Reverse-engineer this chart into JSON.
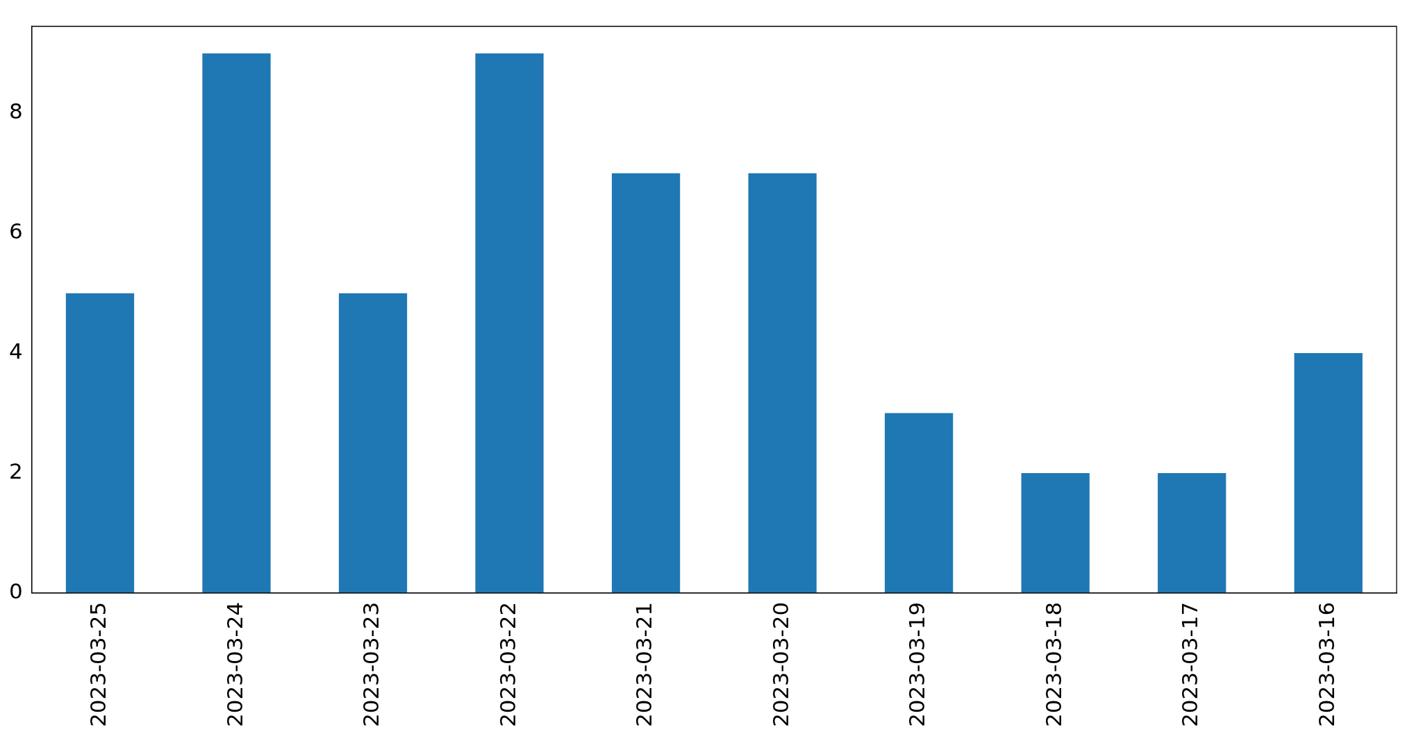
{
  "chart_data": {
    "type": "bar",
    "categories": [
      "2023-03-25",
      "2023-03-24",
      "2023-03-23",
      "2023-03-22",
      "2023-03-21",
      "2023-03-20",
      "2023-03-19",
      "2023-03-18",
      "2023-03-17",
      "2023-03-16"
    ],
    "values": [
      5,
      9,
      5,
      9,
      7,
      7,
      3,
      2,
      2,
      4
    ],
    "color": "#1f77b4",
    "ylim": [
      0,
      9.45
    ],
    "yticks": [
      0,
      2,
      4,
      6,
      8
    ],
    "grid": false,
    "legend": false
  }
}
